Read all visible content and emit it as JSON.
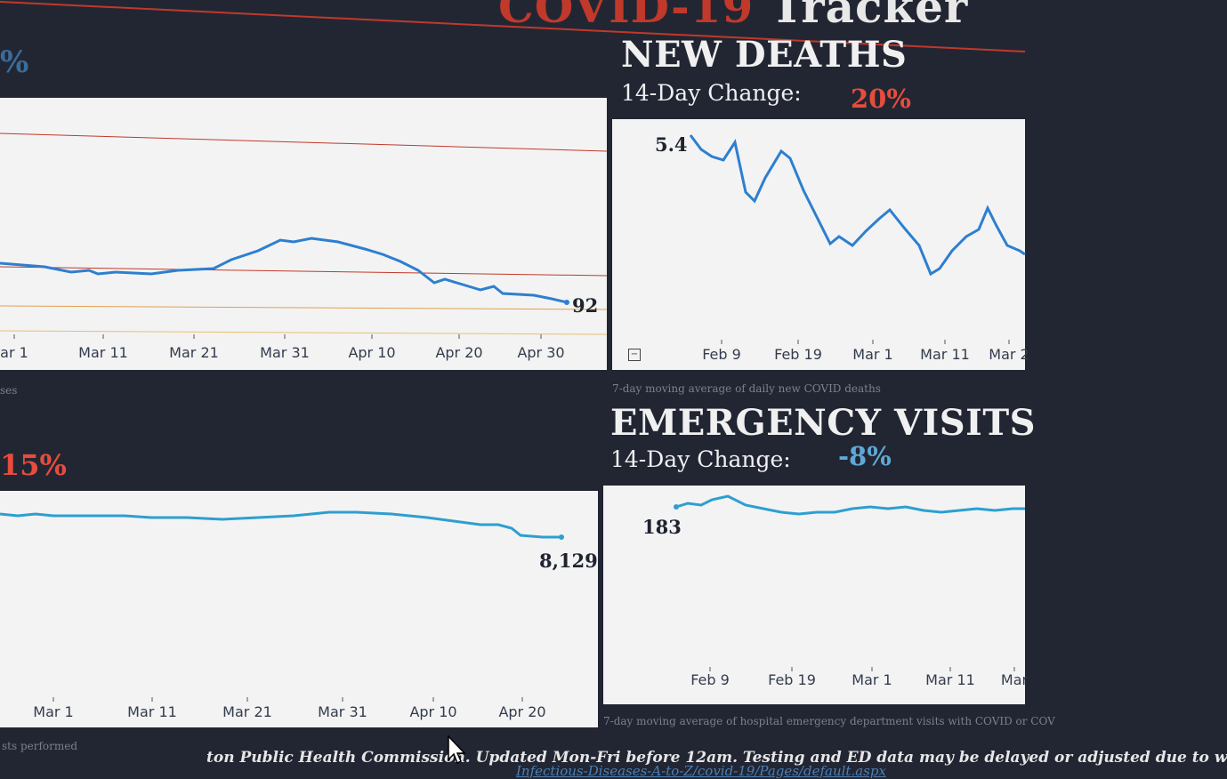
{
  "header": {
    "title_red": "COVID-19",
    "title_white": "Tracker",
    "top_left_pct": "%"
  },
  "new_deaths": {
    "title": "NEW DEATHS",
    "change_label": "14-Day Change:",
    "change_value": "20%",
    "end_value": "5.4",
    "caption": "7-day moving average of daily new COVID deaths",
    "ticks": [
      "Feb 9",
      "Feb 19",
      "Mar 1",
      "Mar 11",
      "Mar 2"
    ]
  },
  "emergency_visits": {
    "title": "EMERGENCY VISITS",
    "change_label": "14-Day Change:",
    "change_value": "-8%",
    "end_value": "183",
    "caption": "7-day moving average of  hospital emergency department visits with COVID or COV",
    "ticks": [
      "Feb 9",
      "Feb 19",
      "Mar 1",
      "Mar 11",
      "Mar"
    ]
  },
  "left_top": {
    "end_value": "92",
    "caption_left": "ses",
    "ticks": [
      "ar 1",
      "Mar 11",
      "Mar 21",
      "Mar 31",
      "Apr 10",
      "Apr 20",
      "Apr 30"
    ]
  },
  "left_bottom": {
    "change_value": "15%",
    "end_value": "8,129",
    "caption_left": "sts performed",
    "ticks": [
      "Mar 1",
      "Mar 11",
      "Mar 21",
      "Mar 31",
      "Apr 10",
      "Apr 20"
    ]
  },
  "footer": {
    "text": "ton Public Health Commission. Updated Mon-Fri before 12am. Testing and ED data may be delayed or adjusted due to w",
    "url": "Infectious-Diseases-A-to-Z/covid-19/Pages/default.aspx"
  },
  "colors": {
    "line": "#2d7fd0",
    "red": "#e74c3c",
    "blue_pct": "#5fa8d8",
    "bg": "#222633"
  }
}
